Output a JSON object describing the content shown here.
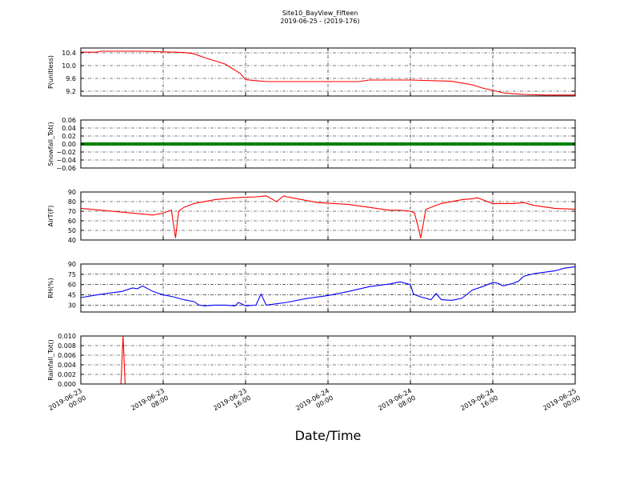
{
  "chart_data": {
    "title": "Site10_BayView_Fifteen",
    "subtitle": "2019-06-25 - (2019-176)",
    "xlabel": "Date/Time",
    "x_ticks": [
      {
        "line1": "2019-06-23",
        "line2": "00:00"
      },
      {
        "line1": "2019-06-23",
        "line2": "08:00"
      },
      {
        "line1": "2019-06-23",
        "line2": "16:00"
      },
      {
        "line1": "2019-06-24",
        "line2": "00:00"
      },
      {
        "line1": "2019-06-24",
        "line2": "08:00"
      },
      {
        "line1": "2019-06-24",
        "line2": "16:00"
      },
      {
        "line1": "2019-06-25",
        "line2": "00:00"
      }
    ],
    "x_range_hours": [
      0,
      48
    ],
    "grid": true,
    "panels": [
      {
        "type": "line",
        "ylabel": "P(unitless)",
        "color": "#ff0000",
        "ylim": [
          9.05,
          10.55
        ],
        "yticks": [
          9.2,
          9.6,
          10.0,
          10.4
        ],
        "ytick_labels": [
          "9.2",
          "9.6",
          "10.0",
          "10.4"
        ],
        "x": [
          0,
          1.5,
          2,
          6,
          8,
          10,
          11,
          12,
          14,
          15.5,
          16,
          17,
          18,
          20,
          24,
          27,
          28,
          32,
          36,
          38,
          39,
          41,
          42,
          43,
          45,
          47,
          48
        ],
        "y": [
          10.42,
          10.42,
          10.45,
          10.45,
          10.43,
          10.41,
          10.37,
          10.25,
          10.05,
          9.75,
          9.56,
          9.53,
          9.5,
          9.5,
          9.5,
          9.5,
          9.55,
          9.55,
          9.51,
          9.4,
          9.3,
          9.15,
          9.12,
          9.1,
          9.08,
          9.08,
          9.08
        ]
      },
      {
        "type": "line",
        "ylabel": "Snowfall_Tot()",
        "color": "#008000",
        "ylim": [
          -0.06,
          0.06
        ],
        "yticks": [
          -0.06,
          -0.04,
          -0.02,
          0.0,
          0.02,
          0.04,
          0.06
        ],
        "ytick_labels": [
          "−0.06",
          "−0.04",
          "−0.02",
          "0.00",
          "0.02",
          "0.04",
          "0.06"
        ],
        "x": [
          0,
          48
        ],
        "y": [
          0.0,
          0.0
        ]
      },
      {
        "type": "line",
        "ylabel": "AirT(F)",
        "color": "#ff0000",
        "ylim": [
          40,
          90
        ],
        "yticks": [
          40,
          50,
          60,
          70,
          80,
          90
        ],
        "ytick_labels": [
          "40",
          "50",
          "60",
          "70",
          "80",
          "90"
        ],
        "x": [
          0,
          2,
          4,
          6,
          7,
          8,
          8.5,
          8.8,
          9.0,
          9.2,
          9.5,
          10,
          11,
          13,
          15,
          17,
          18,
          19,
          19.7,
          20,
          21,
          23,
          26,
          28,
          30,
          31,
          32,
          32.4,
          32.7,
          33.0,
          33.5,
          35,
          37,
          38,
          38.5,
          39,
          40,
          42,
          43,
          44,
          46,
          48
        ],
        "y": [
          73,
          71,
          69,
          67,
          66,
          68,
          70,
          71,
          56,
          42,
          70,
          74,
          78,
          82,
          84,
          85,
          86,
          80,
          86,
          85,
          83,
          79,
          77,
          74,
          71,
          71,
          70,
          68,
          56,
          42,
          72,
          78,
          82,
          83,
          84,
          82,
          78,
          78,
          79,
          76,
          73,
          72
        ]
      },
      {
        "type": "line",
        "ylabel": "RH(%)",
        "color": "#0000ff",
        "ylim": [
          20,
          90
        ],
        "yticks": [
          30,
          45,
          60,
          75,
          90
        ],
        "ytick_labels": [
          "30",
          "45",
          "60",
          "75",
          "90"
        ],
        "x": [
          0,
          2,
          4,
          5,
          5.5,
          6,
          7,
          8,
          9,
          10,
          11,
          11.5,
          12,
          13,
          14,
          15,
          15.3,
          16,
          17,
          17.5,
          18,
          19,
          20,
          22,
          24,
          26,
          28,
          30,
          31,
          32,
          32.3,
          33,
          34,
          34.5,
          35,
          36,
          37,
          38,
          39,
          40,
          40.5,
          41,
          42,
          42.5,
          43,
          44,
          45,
          46,
          47,
          48
        ],
        "y": [
          41,
          46,
          50,
          55,
          54,
          58,
          50,
          45,
          42,
          38,
          35,
          30,
          29,
          30,
          30,
          29,
          34,
          29,
          30,
          46,
          30,
          32,
          34,
          40,
          44,
          50,
          57,
          61,
          64,
          60,
          46,
          42,
          38,
          47,
          38,
          37,
          40,
          52,
          57,
          63,
          62,
          58,
          62,
          65,
          72,
          76,
          78,
          80,
          84,
          86
        ]
      },
      {
        "type": "line",
        "ylabel": "Rainfall_Tot()",
        "color": "#ff0000",
        "ylim": [
          0.0,
          0.01
        ],
        "yticks": [
          0.0,
          0.002,
          0.004,
          0.006,
          0.008,
          0.01
        ],
        "ytick_labels": [
          "0.000",
          "0.002",
          "0.004",
          "0.006",
          "0.008",
          "0.010"
        ],
        "x": [
          0,
          3.9,
          4.1,
          4.3,
          48
        ],
        "y": [
          0,
          0,
          0.01,
          0,
          0
        ]
      }
    ]
  }
}
